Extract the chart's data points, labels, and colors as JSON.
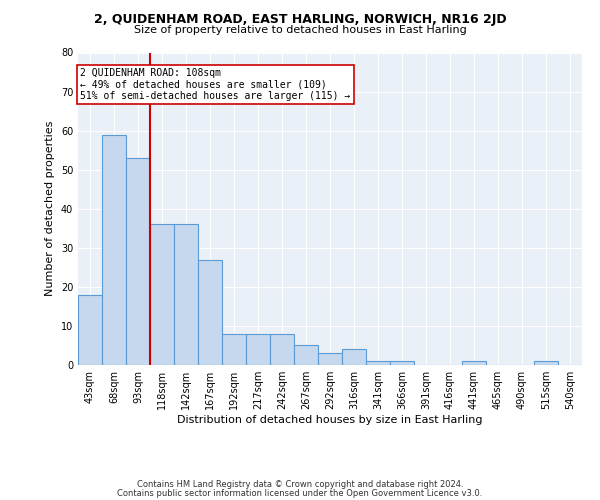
{
  "title1": "2, QUIDENHAM ROAD, EAST HARLING, NORWICH, NR16 2JD",
  "title2": "Size of property relative to detached houses in East Harling",
  "xlabel": "Distribution of detached houses by size in East Harling",
  "ylabel": "Number of detached properties",
  "categories": [
    "43sqm",
    "68sqm",
    "93sqm",
    "118sqm",
    "142sqm",
    "167sqm",
    "192sqm",
    "217sqm",
    "242sqm",
    "267sqm",
    "292sqm",
    "316sqm",
    "341sqm",
    "366sqm",
    "391sqm",
    "416sqm",
    "441sqm",
    "465sqm",
    "490sqm",
    "515sqm",
    "540sqm"
  ],
  "values": [
    18,
    59,
    53,
    36,
    36,
    27,
    8,
    8,
    8,
    5,
    3,
    4,
    1,
    1,
    0,
    0,
    1,
    0,
    0,
    1,
    0
  ],
  "bar_color": "#c5d8ed",
  "bar_edge_color": "#5b9bd5",
  "vline_x_index": 2.5,
  "vline_color": "#cc0000",
  "annotation_line1": "2 QUIDENHAM ROAD: 108sqm",
  "annotation_line2": "← 49% of detached houses are smaller (109)",
  "annotation_line3": "51% of semi-detached houses are larger (115) →",
  "annotation_box_color": "white",
  "annotation_box_edge": "#cc0000",
  "ylim": [
    0,
    80
  ],
  "yticks": [
    0,
    10,
    20,
    30,
    40,
    50,
    60,
    70,
    80
  ],
  "background_color": "#eaf0f8",
  "footer1": "Contains HM Land Registry data © Crown copyright and database right 2024.",
  "footer2": "Contains public sector information licensed under the Open Government Licence v3.0.",
  "title1_fontsize": 9,
  "title2_fontsize": 8,
  "ylabel_fontsize": 8,
  "xlabel_fontsize": 8,
  "tick_fontsize": 7,
  "annot_fontsize": 7,
  "footer_fontsize": 6
}
